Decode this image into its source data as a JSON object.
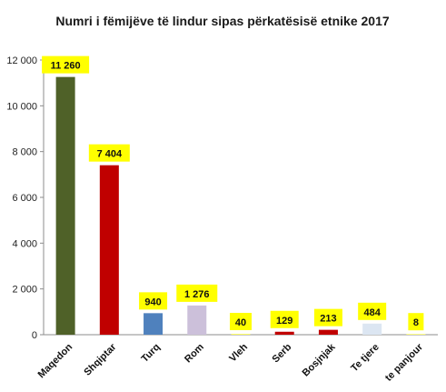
{
  "chart_data": {
    "type": "bar",
    "title": "Numri i fëmijëve të lindur sipas përkatësisë etnike 2017",
    "xlabel": "",
    "ylabel": "",
    "ylim": [
      0,
      12000
    ],
    "yticks": [
      0,
      2000,
      4000,
      6000,
      8000,
      10000,
      12000
    ],
    "ytick_labels": [
      "0",
      "2 000",
      "4 000",
      "6 000",
      "8 000",
      "10 000",
      "12 000"
    ],
    "categories": [
      "Maqedon",
      "Shqiptar",
      "Turq",
      "Rom",
      "Vleh",
      "Serb",
      "Bosjnjak",
      "Te tjere",
      "te panjour"
    ],
    "values": [
      11260,
      7404,
      940,
      1276,
      40,
      129,
      213,
      484,
      8
    ],
    "value_labels": [
      "11 260",
      "7 404",
      "940",
      "1 276",
      "40",
      "129",
      "213",
      "484",
      "8"
    ],
    "bar_colors": [
      "#4f6128",
      "#c00000",
      "#4f81bd",
      "#ccc0da",
      "#ffff66",
      "#c00000",
      "#c00000",
      "#dce6f2",
      "#ffff66"
    ],
    "label_background": "#ffff00",
    "grid": false,
    "legend": "none"
  }
}
